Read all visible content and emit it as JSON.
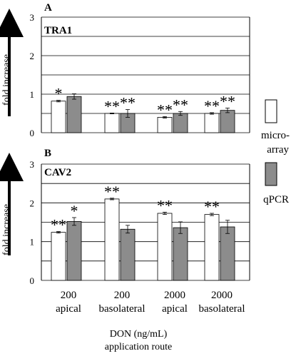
{
  "chart_data": [
    {
      "type": "bar",
      "panel": "A",
      "title": "TRA1",
      "ylabel": "fold increase",
      "ylim": [
        0,
        3
      ],
      "yticks": [
        "0",
        "1",
        "2",
        "3"
      ],
      "categories": [
        "200 apical",
        "200 basolateral",
        "2000 apical",
        "2000 basolateral"
      ],
      "series": [
        {
          "name": "micro-array",
          "values": [
            0.82,
            0.5,
            0.4,
            0.5
          ],
          "errors": [
            0.02,
            0.01,
            0.02,
            0.02
          ],
          "significance": [
            "*",
            "**",
            "**",
            "**"
          ]
        },
        {
          "name": "qPCR",
          "values": [
            0.94,
            0.5,
            0.5,
            0.58
          ],
          "errors": [
            0.07,
            0.1,
            0.05,
            0.06
          ],
          "significance": [
            "",
            "**",
            "**",
            "**"
          ]
        }
      ],
      "grid": true
    },
    {
      "type": "bar",
      "panel": "B",
      "title": "CAV2",
      "ylabel": "fold increase",
      "ylim": [
        0,
        3
      ],
      "yticks": [
        "0",
        "1",
        "2",
        "3"
      ],
      "categories": [
        "200 apical",
        "200 basolateral",
        "2000 apical",
        "2000 basolateral"
      ],
      "series": [
        {
          "name": "micro-array",
          "values": [
            1.24,
            2.1,
            1.73,
            1.7
          ],
          "errors": [
            0.02,
            0.02,
            0.03,
            0.03
          ],
          "significance": [
            "**",
            "**",
            "**",
            "**"
          ]
        },
        {
          "name": "qPCR",
          "values": [
            1.52,
            1.32,
            1.36,
            1.38
          ],
          "errors": [
            0.1,
            0.1,
            0.15,
            0.17
          ],
          "significance": [
            "*",
            "",
            "",
            ""
          ]
        }
      ],
      "grid": true
    }
  ],
  "x_axis": {
    "category_lines": [
      [
        "200",
        "apical"
      ],
      [
        "200",
        "basolateral"
      ],
      [
        "2000",
        "apical"
      ],
      [
        "2000",
        "basolateral"
      ]
    ],
    "title_line1": "DON (ng/mL)",
    "title_line2": "application route"
  },
  "legend": {
    "items": [
      {
        "label_line1": "micro-",
        "label_line2": "array",
        "color": "#ffffff"
      },
      {
        "label_line1": "qPCR",
        "label_line2": "",
        "color": "#8c8c8c"
      }
    ]
  },
  "colors": {
    "microarray": "#ffffff",
    "qpcr": "#8c8c8c",
    "grid": "#000000"
  }
}
